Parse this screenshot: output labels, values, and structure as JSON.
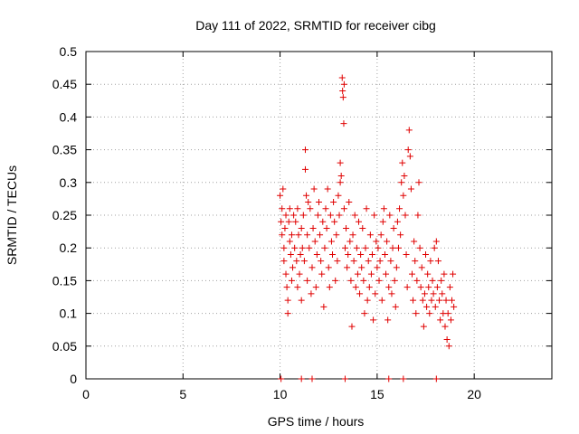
{
  "chart_data": {
    "type": "scatter",
    "title": "Day 111 of 2022, SRMTID for receiver cibg",
    "xlabel": "GPS time / hours",
    "ylabel": "SRMTID / TECUs",
    "xlim": [
      0,
      24
    ],
    "ylim": [
      0,
      0.5
    ],
    "x_ticks": [
      0,
      5,
      10,
      15,
      20
    ],
    "x_tick_labels": [
      "0",
      "5",
      "10",
      "15",
      "20"
    ],
    "y_ticks": [
      0,
      0.05,
      0.1,
      0.15,
      0.2,
      0.25,
      0.3,
      0.35,
      0.4,
      0.45,
      0.5
    ],
    "y_tick_labels": [
      "0",
      "0.05",
      "0.1",
      "0.15",
      "0.2",
      "0.25",
      "0.3",
      "0.35",
      "0.4",
      "0.45",
      "0.5"
    ],
    "grid": true,
    "marker": "+",
    "color": "#e00000",
    "series": [
      {
        "name": "SRMTID",
        "points": [
          [
            10.0,
            0.28
          ],
          [
            10.05,
            0.24
          ],
          [
            10.1,
            0.26
          ],
          [
            10.1,
            0.22
          ],
          [
            10.15,
            0.29
          ],
          [
            10.2,
            0.2
          ],
          [
            10.2,
            0.18
          ],
          [
            10.25,
            0.23
          ],
          [
            10.3,
            0.25
          ],
          [
            10.3,
            0.16
          ],
          [
            10.35,
            0.14
          ],
          [
            10.4,
            0.12
          ],
          [
            10.4,
            0.1
          ],
          [
            10.45,
            0.24
          ],
          [
            10.5,
            0.21
          ],
          [
            10.5,
            0.26
          ],
          [
            10.55,
            0.19
          ],
          [
            10.6,
            0.22
          ],
          [
            10.6,
            0.15
          ],
          [
            10.65,
            0.17
          ],
          [
            10.7,
            0.25
          ],
          [
            10.75,
            0.2
          ],
          [
            10.8,
            0.24
          ],
          [
            10.85,
            0.18
          ],
          [
            10.9,
            0.14
          ],
          [
            10.9,
            0.26
          ],
          [
            10.95,
            0.22
          ],
          [
            11.0,
            0.16
          ],
          [
            11.05,
            0.19
          ],
          [
            11.1,
            0.23
          ],
          [
            11.1,
            0.12
          ],
          [
            11.15,
            0.2
          ],
          [
            11.2,
            0.25
          ],
          [
            11.25,
            0.18
          ],
          [
            11.3,
            0.35
          ],
          [
            11.3,
            0.32
          ],
          [
            11.35,
            0.28
          ],
          [
            11.4,
            0.22
          ],
          [
            11.4,
            0.15
          ],
          [
            11.45,
            0.27
          ],
          [
            11.5,
            0.2
          ],
          [
            11.55,
            0.26
          ],
          [
            11.6,
            0.13
          ],
          [
            11.65,
            0.17
          ],
          [
            11.7,
            0.23
          ],
          [
            11.75,
            0.29
          ],
          [
            11.8,
            0.21
          ],
          [
            11.85,
            0.14
          ],
          [
            11.9,
            0.19
          ],
          [
            11.95,
            0.25
          ],
          [
            12.0,
            0.27
          ],
          [
            12.05,
            0.22
          ],
          [
            12.1,
            0.18
          ],
          [
            12.15,
            0.16
          ],
          [
            12.2,
            0.24
          ],
          [
            12.25,
            0.11
          ],
          [
            12.3,
            0.2
          ],
          [
            12.35,
            0.26
          ],
          [
            12.4,
            0.23
          ],
          [
            12.45,
            0.29
          ],
          [
            12.5,
            0.17
          ],
          [
            12.55,
            0.14
          ],
          [
            12.6,
            0.25
          ],
          [
            12.65,
            0.21
          ],
          [
            12.7,
            0.19
          ],
          [
            12.75,
            0.27
          ],
          [
            12.8,
            0.24
          ],
          [
            12.85,
            0.15
          ],
          [
            12.9,
            0.22
          ],
          [
            12.95,
            0.18
          ],
          [
            13.0,
            0.28
          ],
          [
            13.05,
            0.25
          ],
          [
            13.1,
            0.33
          ],
          [
            13.1,
            0.3
          ],
          [
            13.15,
            0.31
          ],
          [
            13.2,
            0.46
          ],
          [
            13.22,
            0.44
          ],
          [
            13.25,
            0.43
          ],
          [
            13.28,
            0.39
          ],
          [
            13.3,
            0.45
          ],
          [
            13.3,
            0.26
          ],
          [
            13.35,
            0.2
          ],
          [
            13.4,
            0.23
          ],
          [
            13.45,
            0.17
          ],
          [
            13.5,
            0.19
          ],
          [
            13.55,
            0.27
          ],
          [
            13.6,
            0.21
          ],
          [
            13.65,
            0.15
          ],
          [
            13.7,
            0.08
          ],
          [
            13.75,
            0.22
          ],
          [
            13.8,
            0.18
          ],
          [
            13.85,
            0.25
          ],
          [
            13.9,
            0.14
          ],
          [
            13.95,
            0.2
          ],
          [
            14.0,
            0.16
          ],
          [
            14.05,
            0.24
          ],
          [
            14.1,
            0.13
          ],
          [
            14.15,
            0.19
          ],
          [
            14.2,
            0.17
          ],
          [
            14.25,
            0.23
          ],
          [
            14.3,
            0.15
          ],
          [
            14.35,
            0.1
          ],
          [
            14.4,
            0.2
          ],
          [
            14.45,
            0.26
          ],
          [
            14.5,
            0.12
          ],
          [
            14.55,
            0.18
          ],
          [
            14.6,
            0.14
          ],
          [
            14.65,
            0.22
          ],
          [
            14.7,
            0.16
          ],
          [
            14.75,
            0.19
          ],
          [
            14.8,
            0.09
          ],
          [
            14.85,
            0.25
          ],
          [
            14.9,
            0.13
          ],
          [
            14.95,
            0.21
          ],
          [
            15.0,
            0.17
          ],
          [
            15.05,
            0.2
          ],
          [
            15.1,
            0.15
          ],
          [
            15.15,
            0.18
          ],
          [
            15.2,
            0.22
          ],
          [
            15.25,
            0.12
          ],
          [
            15.3,
            0.24
          ],
          [
            15.35,
            0.26
          ],
          [
            15.4,
            0.19
          ],
          [
            15.45,
            0.16
          ],
          [
            15.5,
            0.21
          ],
          [
            15.55,
            0.09
          ],
          [
            15.6,
            0.14
          ],
          [
            15.65,
            0.25
          ],
          [
            15.7,
            0.18
          ],
          [
            15.75,
            0.13
          ],
          [
            15.8,
            0.2
          ],
          [
            15.85,
            0.23
          ],
          [
            15.9,
            0.15
          ],
          [
            15.95,
            0.11
          ],
          [
            16.0,
            0.17
          ],
          [
            16.05,
            0.24
          ],
          [
            16.1,
            0.2
          ],
          [
            16.15,
            0.26
          ],
          [
            16.2,
            0.22
          ],
          [
            16.25,
            0.3
          ],
          [
            16.3,
            0.33
          ],
          [
            16.35,
            0.28
          ],
          [
            16.4,
            0.31
          ],
          [
            16.45,
            0.25
          ],
          [
            16.5,
            0.19
          ],
          [
            16.55,
            0.14
          ],
          [
            16.6,
            0.35
          ],
          [
            16.65,
            0.38
          ],
          [
            16.7,
            0.34
          ],
          [
            16.75,
            0.29
          ],
          [
            16.8,
            0.16
          ],
          [
            16.85,
            0.12
          ],
          [
            16.9,
            0.21
          ],
          [
            16.95,
            0.18
          ],
          [
            17.0,
            0.1
          ],
          [
            17.05,
            0.15
          ],
          [
            17.1,
            0.25
          ],
          [
            17.15,
            0.3
          ],
          [
            17.2,
            0.2
          ],
          [
            17.25,
            0.14
          ],
          [
            17.3,
            0.17
          ],
          [
            17.35,
            0.12
          ],
          [
            17.4,
            0.08
          ],
          [
            17.45,
            0.13
          ],
          [
            17.5,
            0.19
          ],
          [
            17.55,
            0.11
          ],
          [
            17.6,
            0.16
          ],
          [
            17.65,
            0.14
          ],
          [
            17.7,
            0.1
          ],
          [
            17.75,
            0.18
          ],
          [
            17.8,
            0.12
          ],
          [
            17.85,
            0.15
          ],
          [
            17.9,
            0.13
          ],
          [
            17.95,
            0.2
          ],
          [
            18.0,
            0.11
          ],
          [
            18.05,
            0.21
          ],
          [
            18.1,
            0.14
          ],
          [
            18.15,
            0.18
          ],
          [
            18.2,
            0.12
          ],
          [
            18.25,
            0.09
          ],
          [
            18.3,
            0.15
          ],
          [
            18.35,
            0.13
          ],
          [
            18.4,
            0.1
          ],
          [
            18.45,
            0.16
          ],
          [
            18.5,
            0.08
          ],
          [
            18.55,
            0.12
          ],
          [
            18.6,
            0.06
          ],
          [
            18.65,
            0.1
          ],
          [
            18.7,
            0.05
          ],
          [
            18.75,
            0.14
          ],
          [
            18.8,
            0.09
          ],
          [
            18.85,
            0.12
          ],
          [
            18.9,
            0.16
          ],
          [
            18.95,
            0.11
          ],
          [
            10.05,
            0.0
          ],
          [
            11.1,
            0.0
          ],
          [
            11.65,
            0.0
          ],
          [
            13.35,
            0.0
          ],
          [
            15.6,
            0.0
          ],
          [
            16.35,
            0.0
          ],
          [
            18.05,
            0.0
          ]
        ]
      }
    ]
  }
}
